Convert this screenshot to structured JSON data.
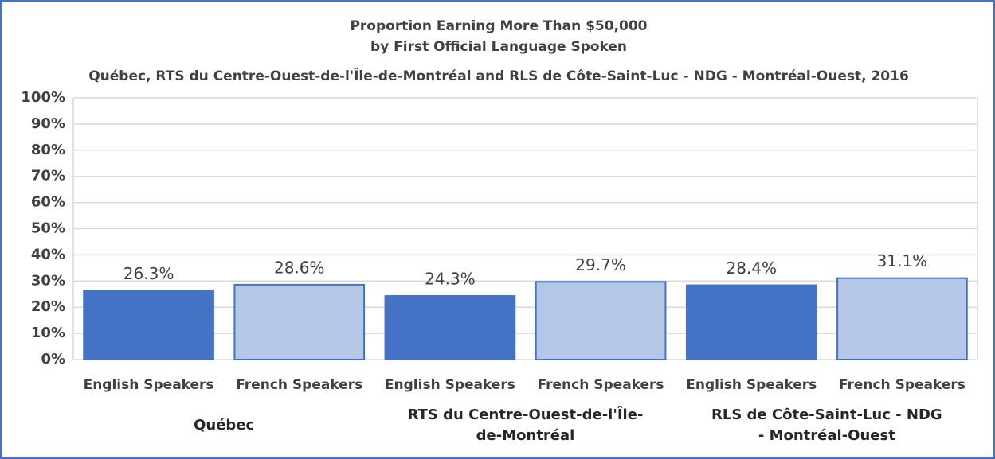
{
  "chart_data": {
    "type": "bar",
    "title": "Proportion Earning More Than $50,000",
    "subtitle": [
      "by First Official Language Spoken",
      "Québec, RTS du Centre-Ouest-de-l'Île-de-Montréal and RLS de Côte-Saint-Luc - NDG - Montréal-Ouest, 2016"
    ],
    "categories": [
      "English Speakers",
      "French Speakers",
      "English Speakers",
      "French Speakers",
      "English Speakers",
      "French Speakers"
    ],
    "category_groups": [
      "Québec",
      "RTS du Centre-Ouest-de-l'Île-de-Montréal",
      "RLS de Côte-Saint-Luc - NDG - Montréal-Ouest"
    ],
    "values": [
      26.3,
      28.6,
      24.3,
      29.7,
      28.4,
      31.1
    ],
    "value_labels": [
      "26.3%",
      "28.6%",
      "24.3%",
      "29.7%",
      "28.4%",
      "31.1%"
    ],
    "colors": [
      "#4472c4",
      "#b4c7e7",
      "#4472c4",
      "#b4c7e7",
      "#4472c4",
      "#b4c7e7"
    ],
    "edge_color": "#4472c4",
    "ylim": [
      0,
      100
    ],
    "yticks": [
      {
        "value": 0,
        "label": "0%"
      },
      {
        "value": 10,
        "label": "10%"
      },
      {
        "value": 20,
        "label": "20%"
      },
      {
        "value": 30,
        "label": "30%"
      },
      {
        "value": 40,
        "label": "40%"
      },
      {
        "value": 50,
        "label": "50%"
      },
      {
        "value": 60,
        "label": "60%"
      },
      {
        "value": 70,
        "label": "70%"
      },
      {
        "value": 80,
        "label": "80%"
      },
      {
        "value": 90,
        "label": "90%"
      },
      {
        "value": 100,
        "label": "100%"
      }
    ],
    "grid": true
  }
}
